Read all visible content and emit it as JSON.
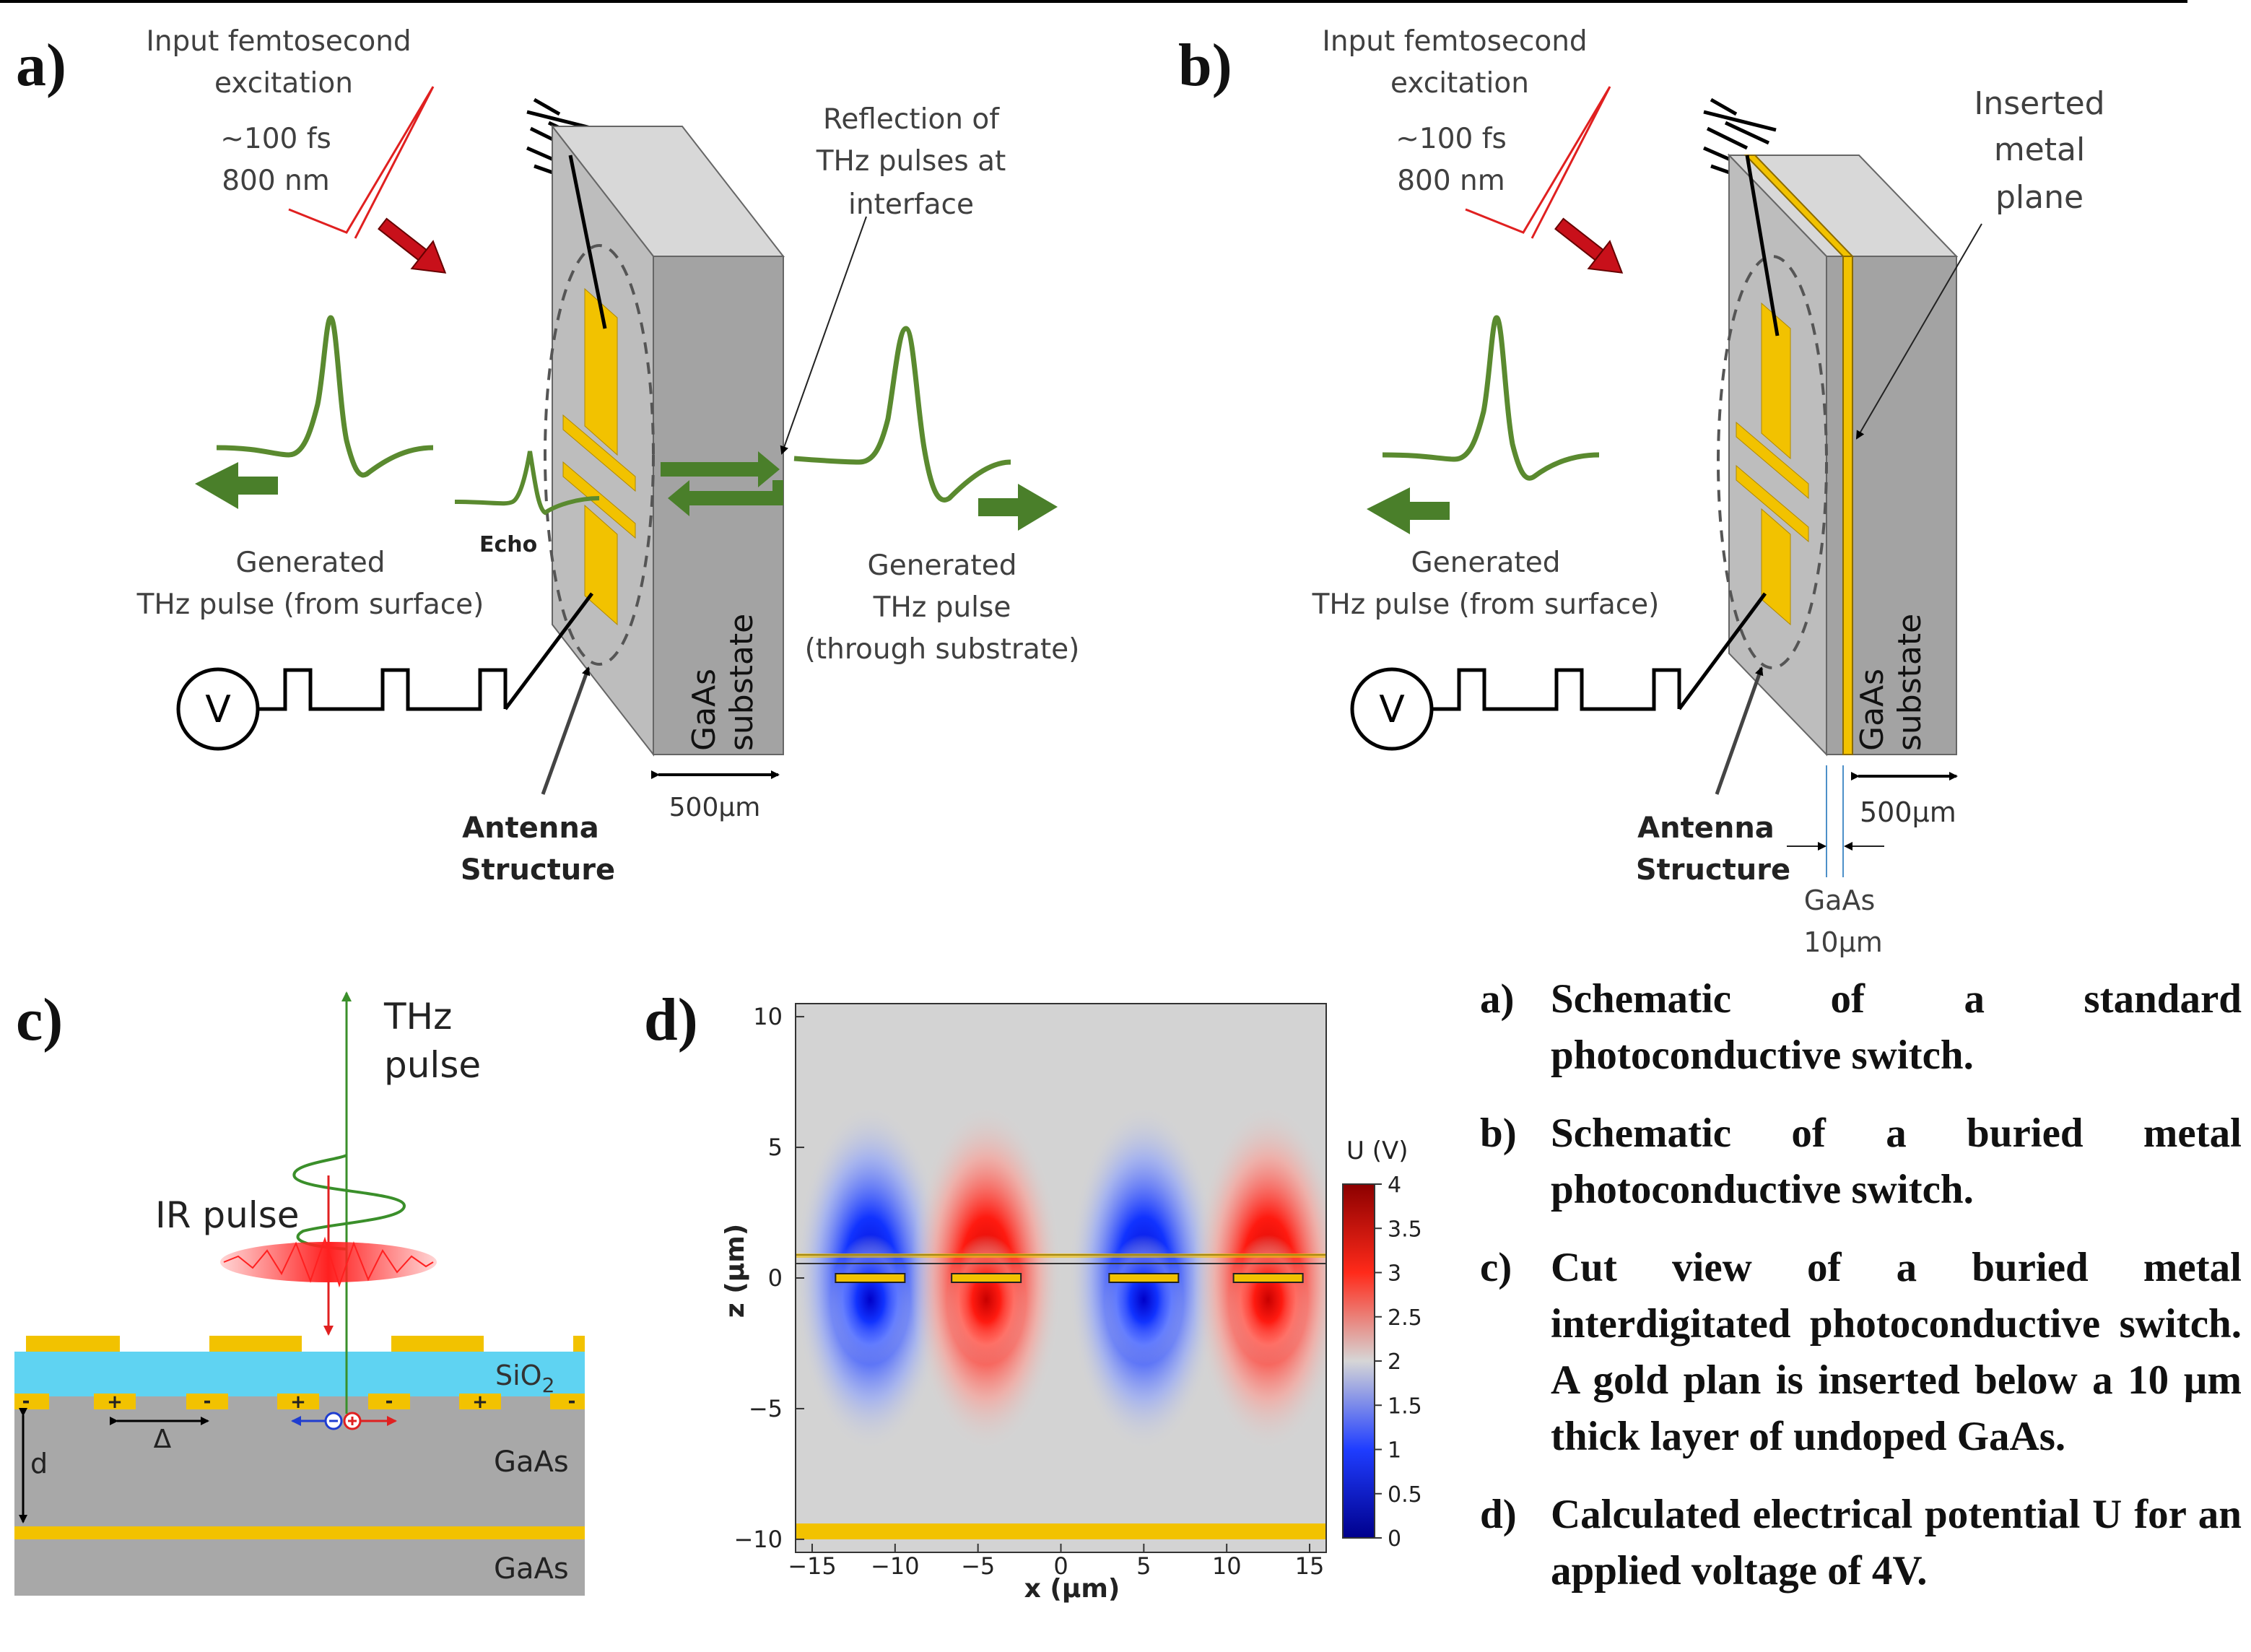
{
  "panel_a": {
    "panel_label": "a)",
    "input_line1": "Input femtosecond",
    "input_line2": "excitation",
    "pulse_duration": "~100 fs",
    "wavelength": "800 nm",
    "reflection_line1": "Reflection of",
    "reflection_line2": "THz pulses at",
    "reflection_line3": "interface",
    "generated_surface_line1": "Generated",
    "generated_surface_line2": "THz pulse (from surface)",
    "echo": "Echo",
    "generated_sub_line1": "Generated",
    "generated_sub_line2": "THz pulse",
    "generated_sub_line3": "(through substrate)",
    "voltage_symbol": "V",
    "substrate_line1": "GaAs",
    "substrate_line2": "substate",
    "antenna_line1": "Antenna",
    "antenna_line2": "Structure",
    "thickness": "500µm"
  },
  "panel_b": {
    "panel_label": "b)",
    "input_line1": "Input femtosecond",
    "input_line2": "excitation",
    "pulse_duration": "~100 fs",
    "wavelength": "800 nm",
    "metal_line1": "Inserted",
    "metal_line2": "metal",
    "metal_line3": "plane",
    "generated_surface_line1": "Generated",
    "generated_surface_line2": "THz pulse (from surface)",
    "voltage_symbol": "V",
    "substrate_line1": "GaAs",
    "substrate_line2": "substate",
    "antenna_line1": "Antenna",
    "antenna_line2": "Structure",
    "thickness": "500µm",
    "layer_material": "GaAs",
    "layer_thickness": "10µm"
  },
  "panel_c": {
    "panel_label": "c)",
    "thz_line1": "THz",
    "thz_line2": "pulse",
    "ir_pulse": "IR pulse",
    "oxide_base": "SiO",
    "oxide_sub": "2",
    "gaas_top": "GaAs",
    "gaas_bottom": "GaAs",
    "d_label": "d",
    "delta_label": "Δ",
    "plus": "+",
    "minus": "-"
  },
  "panel_d": {
    "panel_label": "d)",
    "xlabel": "x (µm)",
    "ylabel": "z (µm)",
    "colorbar_title": "U (V)",
    "x_ticks": [
      "−15",
      "−10",
      "−5",
      "0",
      "5",
      "10",
      "15"
    ],
    "y_ticks": [
      "10",
      "5",
      "0",
      "−5",
      "−10"
    ],
    "colorbar_ticks": [
      "4",
      "3.5",
      "3",
      "2.5",
      "2",
      "1.5",
      "1",
      "0.5",
      "0"
    ]
  },
  "chart_data": {
    "type": "heatmap",
    "title": "",
    "xlabel": "x (µm)",
    "ylabel": "z (µm)",
    "xlim": [
      -16,
      16
    ],
    "ylim": [
      -10.5,
      10.5
    ],
    "colorbar": {
      "label": "U (V)",
      "min": 0,
      "max": 4,
      "colors": [
        "#00008c",
        "#1f3dff",
        "#d6d6d6",
        "#ff2a1a",
        "#8c0000"
      ]
    },
    "electrodes": [
      {
        "x_center": -11.5,
        "potential_V": 0
      },
      {
        "x_center": -4.5,
        "potential_V": 4
      },
      {
        "x_center": 5,
        "potential_V": 0
      },
      {
        "x_center": 12.5,
        "potential_V": 4
      }
    ],
    "background_potential_V": 2,
    "metal_plane_z": -10
  },
  "caption": {
    "items": [
      {
        "key": "a)",
        "text": "Schematic of a standard photoconductive switch."
      },
      {
        "key": "b)",
        "text": "Schematic of a buried metal photoconductive switch."
      },
      {
        "key": "c)",
        "text": "Cut view of a buried metal interdigitated photoconductive switch. A gold plan is inserted below a 10 µm thick layer of undoped GaAs."
      },
      {
        "key": "d)",
        "text": "Calculated electrical potential U for an applied voltage of 4V."
      }
    ]
  },
  "colors": {
    "gold": "#f2c200",
    "thz_green": "#5a8a2f",
    "laser_red": "#e02020",
    "block_front": "#bdbdbd",
    "block_side": "#9a9a9a",
    "oxide": "#5fd3f2"
  }
}
